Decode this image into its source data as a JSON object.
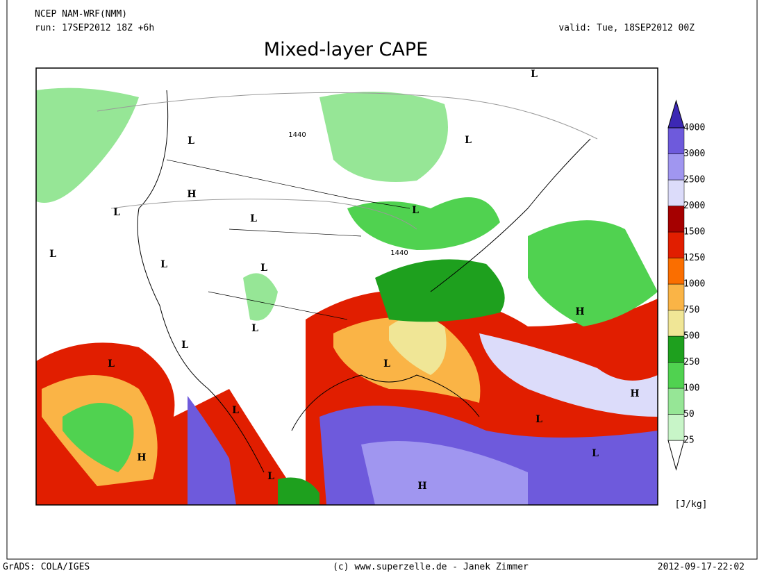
{
  "header": {
    "model": "NCEP NAM-WRF(NMM)",
    "run": "run: 17SEP2012 18Z +6h",
    "valid": "valid: Tue, 18SEP2012 00Z",
    "title": "Mixed-layer CAPE"
  },
  "map": {
    "labels": [
      "L",
      "H",
      "L",
      "L",
      "L",
      "L",
      "L",
      "L",
      "L",
      "L",
      "H",
      "L",
      "L",
      "L",
      "H",
      "L",
      "H",
      "L",
      "H",
      "L",
      "L",
      "L"
    ],
    "isolines": [
      "1440",
      "1440"
    ]
  },
  "colorbar": {
    "levels": [
      25,
      50,
      100,
      250,
      500,
      750,
      1000,
      1250,
      1500,
      2000,
      2500,
      3000,
      4000
    ],
    "colors": [
      "#ffffff",
      "#c8f5c8",
      "#96e696",
      "#50d250",
      "#1ea01e",
      "#f0e696",
      "#fab446",
      "#fa6e00",
      "#e11e00",
      "#a50000",
      "#dcdcfa",
      "#a096f0",
      "#6e5adc",
      "#3c28b4"
    ],
    "unit": "[J/kg]"
  },
  "footer": {
    "left": "GrADS: COLA/IGES",
    "center": "(c) www.superzelle.de - Janek Zimmer",
    "right": "2012-09-17-22:02"
  }
}
